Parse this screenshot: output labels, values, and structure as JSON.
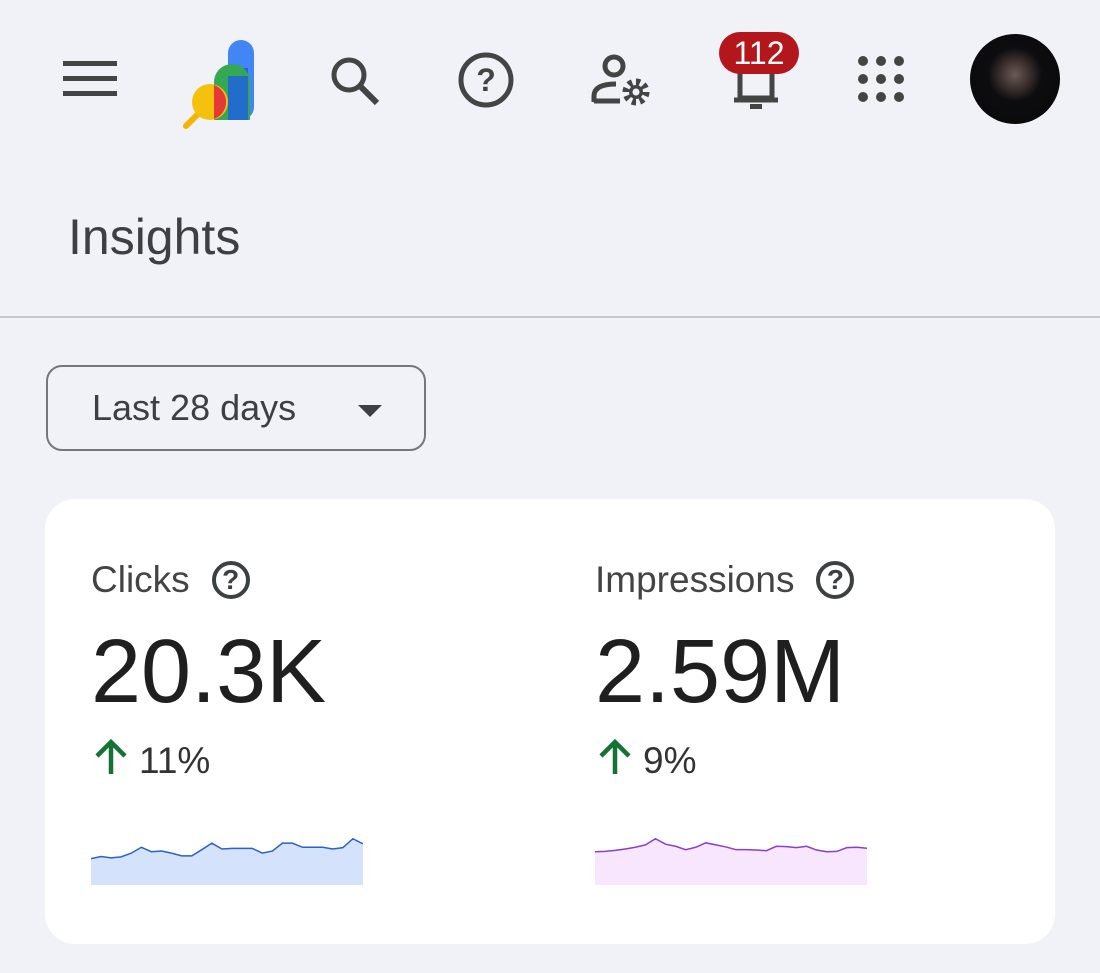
{
  "header": {
    "icons": [
      "menu-icon",
      "search-console-logo",
      "search-icon",
      "help-icon",
      "user-settings-icon",
      "notifications-bell-icon",
      "apps-grid-icon",
      "account-avatar"
    ],
    "notification_count": "112"
  },
  "page": {
    "title": "Insights"
  },
  "filter": {
    "date_range": "Last 28 days"
  },
  "metrics": [
    {
      "label": "Clicks",
      "value": "20.3K",
      "change": "11%",
      "direction": "up",
      "line_color": "#2a62c8",
      "fill_color": "#d5e2fc",
      "sparkline": [
        77,
        83,
        79,
        82,
        93,
        110,
        97,
        99,
        93,
        85,
        85,
        103,
        122,
        105,
        107,
        107,
        107,
        93,
        99,
        122,
        122,
        110,
        110,
        110,
        105,
        109,
        135,
        120
      ]
    },
    {
      "label": "Impressions",
      "value": "2.59M",
      "change": "9%",
      "direction": "up",
      "line_color": "#8a3fc8",
      "fill_color": "#f7e6fd",
      "sparkline": [
        97,
        98,
        101,
        105,
        110,
        117,
        135,
        119,
        113,
        103,
        110,
        123,
        117,
        111,
        103,
        103,
        102,
        100,
        113,
        112,
        109,
        113,
        102,
        97,
        98,
        109,
        110,
        107
      ]
    }
  ],
  "colors": {
    "up": "#137333",
    "badge": "#b3171c"
  }
}
